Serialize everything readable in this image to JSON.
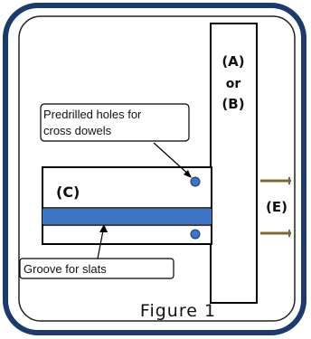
{
  "figure": {
    "caption": "Figure 1",
    "frame_color": "#1c3a6b",
    "groove_color": "#3e74c4",
    "hole_color": "#3e74c4"
  },
  "labels": {
    "board_a": "(A)",
    "or": "or",
    "board_b": "(B)",
    "board_c": "(C)",
    "dowels_e": "(E)"
  },
  "annotations": {
    "holes_line1": "Predrilled holes for",
    "holes_line2": "cross dowels",
    "groove": "Groove for slats"
  }
}
